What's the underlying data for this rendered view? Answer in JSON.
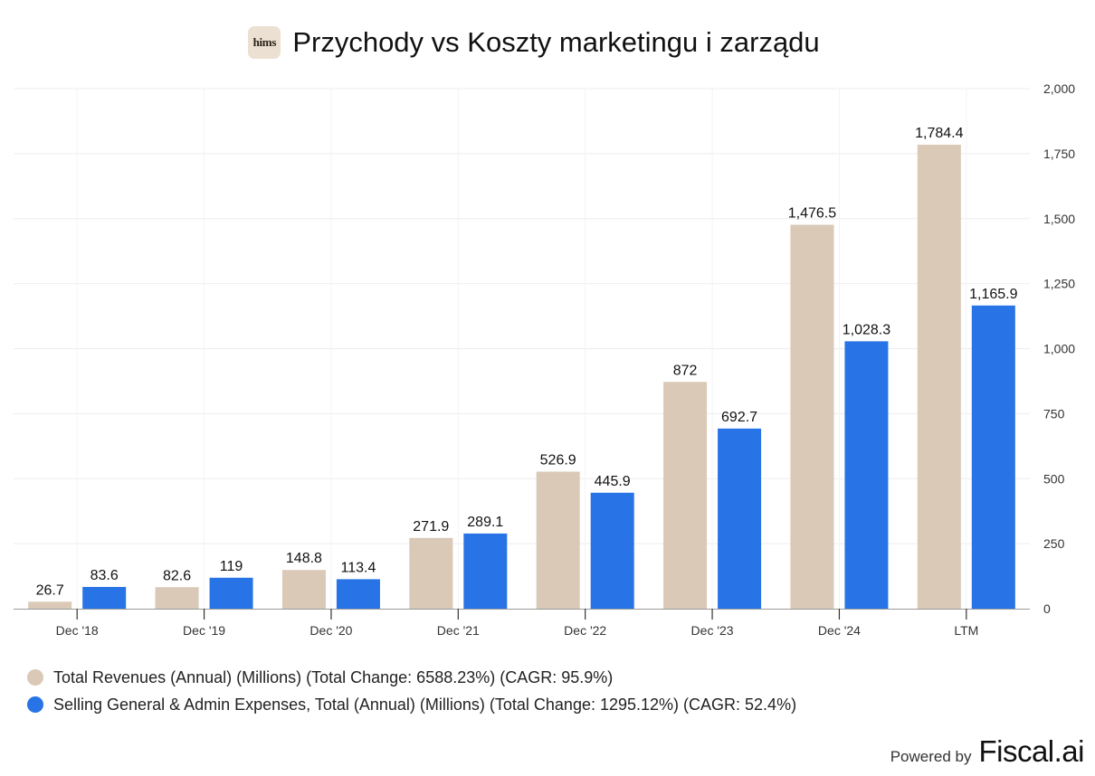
{
  "header": {
    "logo_text": "hims",
    "title": "Przychody vs Koszty marketingu i zarządu"
  },
  "chart_data": {
    "type": "bar",
    "categories": [
      "Dec '18",
      "Dec '19",
      "Dec '20",
      "Dec '21",
      "Dec '22",
      "Dec '23",
      "Dec '24",
      "LTM"
    ],
    "series": [
      {
        "name": "Total Revenues (Annual) (Millions) (Total Change: 6588.23%) (CAGR: 95.9%)",
        "color": "#d9c9b6",
        "values": [
          26.7,
          82.6,
          148.8,
          271.9,
          526.9,
          872,
          1476.5,
          1784.4
        ],
        "labels": [
          "26.7",
          "82.6",
          "148.8",
          "271.9",
          "526.9",
          "872",
          "1,476.5",
          "1,784.4"
        ]
      },
      {
        "name": "Selling General & Admin Expenses, Total (Annual) (Millions) (Total Change: 1295.12%) (CAGR: 52.4%)",
        "color": "#2874e6",
        "values": [
          83.6,
          119,
          113.4,
          289.1,
          445.9,
          692.7,
          1028.3,
          1165.9
        ],
        "labels": [
          "83.6",
          "119",
          "113.4",
          "289.1",
          "445.9",
          "692.7",
          "1,028.3",
          "1,165.9"
        ]
      }
    ],
    "y_axis": {
      "position": "right",
      "ylim": [
        0,
        2000
      ],
      "ticks": [
        0,
        250,
        500,
        750,
        1000,
        1250,
        1500,
        1750,
        2000
      ],
      "tick_labels": [
        "0",
        "250",
        "500",
        "750",
        "1,000",
        "1,250",
        "1,500",
        "1,750",
        "2,000"
      ]
    },
    "grid": true,
    "legend_position": "bottom-left"
  },
  "footer": {
    "powered_by": "Powered by",
    "brand": "Fiscal.ai"
  }
}
